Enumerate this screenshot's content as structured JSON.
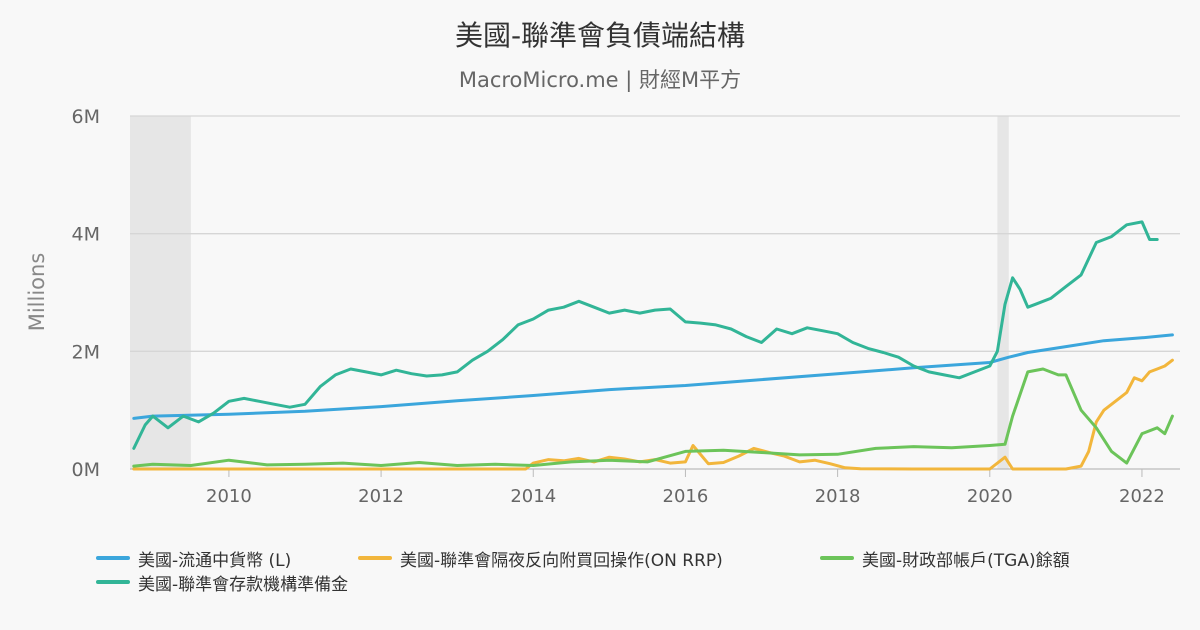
{
  "chart_data": {
    "type": "line",
    "title": "美國-聯準會負債端結構",
    "subtitle": "MacroMicro.me | 財經M平方",
    "ylabel": "Millions",
    "ylim": [
      0,
      6000000
    ],
    "yticks": [
      {
        "value": 0,
        "label": "0M"
      },
      {
        "value": 2000000,
        "label": "2M"
      },
      {
        "value": 4000000,
        "label": "4M"
      },
      {
        "value": 6000000,
        "label": "6M"
      }
    ],
    "xlim": [
      2008.7,
      2022.5
    ],
    "xticks": [
      {
        "value": 2010,
        "label": "2010"
      },
      {
        "value": 2012,
        "label": "2012"
      },
      {
        "value": 2014,
        "label": "2014"
      },
      {
        "value": 2016,
        "label": "2016"
      },
      {
        "value": 2018,
        "label": "2018"
      },
      {
        "value": 2020,
        "label": "2020"
      },
      {
        "value": 2022,
        "label": "2022"
      }
    ],
    "recessions": [
      {
        "start": 2008.7,
        "end": 2009.5
      },
      {
        "start": 2020.1,
        "end": 2020.25
      }
    ],
    "legend_position": "bottom",
    "series": [
      {
        "name": "美國-流通中貨幣 (L)",
        "color": "#3ba6dc",
        "x": [
          2008.75,
          2009.0,
          2010.0,
          2011.0,
          2012.0,
          2013.0,
          2014.0,
          2015.0,
          2016.0,
          2017.0,
          2018.0,
          2019.0,
          2020.0,
          2020.25,
          2020.5,
          2021.0,
          2021.5,
          2022.0,
          2022.4
        ],
        "values": [
          860000,
          900000,
          930000,
          980000,
          1060000,
          1160000,
          1250000,
          1350000,
          1420000,
          1520000,
          1620000,
          1720000,
          1810000,
          1900000,
          1980000,
          2080000,
          2180000,
          2230000,
          2280000
        ]
      },
      {
        "name": "美國-聯準會隔夜反向附買回操作(ON RRP)",
        "color": "#f2b63c",
        "x": [
          2008.75,
          2013.9,
          2014.0,
          2014.2,
          2014.4,
          2014.6,
          2014.8,
          2015.0,
          2015.2,
          2015.4,
          2015.6,
          2015.8,
          2016.0,
          2016.1,
          2016.3,
          2016.5,
          2016.7,
          2016.9,
          2017.1,
          2017.3,
          2017.5,
          2017.7,
          2017.9,
          2018.1,
          2018.3,
          2019.0,
          2020.0,
          2020.2,
          2020.3,
          2021.0,
          2021.2,
          2021.3,
          2021.4,
          2021.5,
          2021.6,
          2021.7,
          2021.8,
          2021.9,
          2022.0,
          2022.1,
          2022.2,
          2022.3,
          2022.4
        ],
        "values": [
          0,
          0,
          100000,
          160000,
          140000,
          180000,
          120000,
          200000,
          170000,
          120000,
          160000,
          100000,
          120000,
          400000,
          90000,
          110000,
          220000,
          350000,
          280000,
          220000,
          120000,
          150000,
          90000,
          20000,
          5000,
          0,
          0,
          200000,
          0,
          0,
          50000,
          300000,
          800000,
          1000000,
          1100000,
          1200000,
          1300000,
          1550000,
          1500000,
          1650000,
          1700000,
          1750000,
          1850000
        ]
      },
      {
        "name": "美國-財政部帳戶(TGA)餘額",
        "color": "#6cc45a",
        "x": [
          2008.75,
          2009.0,
          2009.5,
          2010.0,
          2010.5,
          2011.0,
          2011.5,
          2012.0,
          2012.5,
          2013.0,
          2013.5,
          2014.0,
          2014.5,
          2015.0,
          2015.5,
          2016.0,
          2016.5,
          2017.0,
          2017.5,
          2018.0,
          2018.5,
          2019.0,
          2019.5,
          2020.0,
          2020.2,
          2020.3,
          2020.5,
          2020.7,
          2020.9,
          2021.0,
          2021.2,
          2021.4,
          2021.6,
          2021.8,
          2022.0,
          2022.2,
          2022.3,
          2022.4
        ],
        "values": [
          50000,
          80000,
          60000,
          150000,
          70000,
          80000,
          100000,
          60000,
          110000,
          60000,
          80000,
          60000,
          120000,
          150000,
          120000,
          300000,
          320000,
          280000,
          240000,
          250000,
          350000,
          380000,
          360000,
          400000,
          420000,
          900000,
          1650000,
          1700000,
          1600000,
          1600000,
          1000000,
          700000,
          300000,
          100000,
          600000,
          700000,
          600000,
          900000
        ]
      },
      {
        "name": "美國-聯準會存款機構準備金",
        "color": "#32b597",
        "x": [
          2008.75,
          2008.9,
          2009.0,
          2009.2,
          2009.4,
          2009.6,
          2009.8,
          2010.0,
          2010.2,
          2010.4,
          2010.6,
          2010.8,
          2011.0,
          2011.2,
          2011.4,
          2011.6,
          2011.8,
          2012.0,
          2012.2,
          2012.4,
          2012.6,
          2012.8,
          2013.0,
          2013.2,
          2013.4,
          2013.6,
          2013.8,
          2014.0,
          2014.2,
          2014.4,
          2014.6,
          2014.8,
          2015.0,
          2015.2,
          2015.4,
          2015.6,
          2015.8,
          2016.0,
          2016.2,
          2016.4,
          2016.6,
          2016.8,
          2017.0,
          2017.2,
          2017.4,
          2017.6,
          2017.8,
          2018.0,
          2018.2,
          2018.4,
          2018.6,
          2018.8,
          2019.0,
          2019.2,
          2019.4,
          2019.6,
          2019.8,
          2020.0,
          2020.1,
          2020.2,
          2020.3,
          2020.4,
          2020.5,
          2020.6,
          2020.8,
          2021.0,
          2021.2,
          2021.4,
          2021.6,
          2021.8,
          2022.0,
          2022.1,
          2022.2
        ],
        "values": [
          350000,
          750000,
          900000,
          700000,
          900000,
          800000,
          950000,
          1150000,
          1200000,
          1150000,
          1100000,
          1050000,
          1100000,
          1400000,
          1600000,
          1700000,
          1650000,
          1600000,
          1680000,
          1620000,
          1580000,
          1600000,
          1650000,
          1850000,
          2000000,
          2200000,
          2450000,
          2550000,
          2700000,
          2750000,
          2850000,
          2750000,
          2650000,
          2700000,
          2650000,
          2700000,
          2720000,
          2500000,
          2480000,
          2450000,
          2380000,
          2250000,
          2150000,
          2380000,
          2300000,
          2400000,
          2350000,
          2300000,
          2150000,
          2050000,
          1980000,
          1900000,
          1750000,
          1650000,
          1600000,
          1550000,
          1650000,
          1750000,
          2000000,
          2800000,
          3250000,
          3050000,
          2750000,
          2800000,
          2900000,
          3100000,
          3300000,
          3850000,
          3950000,
          4150000,
          4200000,
          3900000,
          3900000
        ]
      }
    ]
  }
}
